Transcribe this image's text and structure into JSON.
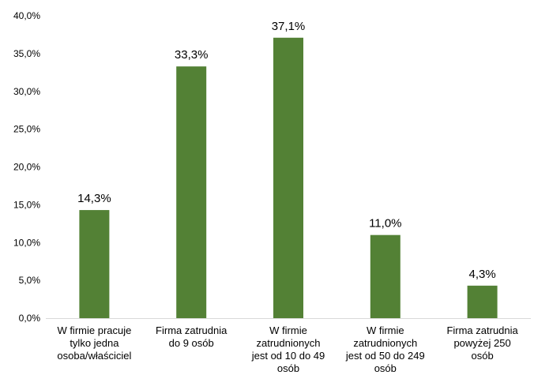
{
  "chart_data": {
    "type": "bar",
    "title": "",
    "xlabel": "",
    "ylabel": "",
    "ylim": [
      0,
      40
    ],
    "yticks": [
      "0,0%",
      "5,0%",
      "10,0%",
      "15,0%",
      "20,0%",
      "25,0%",
      "30,0%",
      "35,0%",
      "40,0%"
    ],
    "grid": false,
    "legend": "none",
    "bar_color": "#538135",
    "categories": [
      [
        "W firmie pracuje",
        "tylko jedna",
        "osoba/właściciel"
      ],
      [
        "Firma zatrudnia",
        "do 9 osób"
      ],
      [
        "W firmie",
        "zatrudnionych",
        "jest od 10 do 49",
        "osób"
      ],
      [
        "W firmie",
        "zatrudnionych",
        "jest od 50 do 249",
        "osób"
      ],
      [
        "Firma zatrudnia",
        "powyżej 250",
        "osób"
      ]
    ],
    "values": [
      14.3,
      33.3,
      37.1,
      11.0,
      4.3
    ],
    "data_labels": [
      "14,3%",
      "33,3%",
      "37,1%",
      "11,0%",
      "4,3%"
    ]
  }
}
